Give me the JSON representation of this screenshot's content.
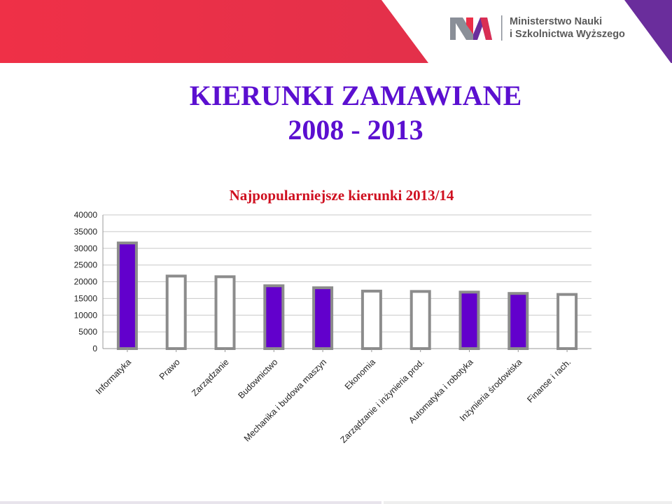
{
  "slide": {
    "title_line1": "KIERUNKI ZAMAWIANE",
    "title_line2": "2008 - 2013"
  },
  "logo": {
    "name_line1": "Ministerstwo Nauki",
    "name_line2": "i Szkolnictwa Wyższego"
  },
  "colors": {
    "banner_red": "#ec2f48",
    "banner_purple": "#6a2d9c",
    "bar_fill": "#6200cc",
    "bar_border": "#8c8c8c",
    "title_purple": "#5b0fd0",
    "chart_title_red": "#cf1020"
  },
  "chart_data": {
    "type": "bar",
    "title": "Najpopularniejsze kierunki 2013/14",
    "categories": [
      "Informatyka",
      "Prawo",
      "Zarządzanie",
      "Budownictwo",
      "Mechanika i budowa maszyn",
      "Ekonomia",
      "Zarządzanie i inżynieria prod.",
      "Automatyka i robotyka",
      "Inżynieria środowiska",
      "Finanse i rach."
    ],
    "values": [
      31600,
      21700,
      21500,
      18800,
      18200,
      17200,
      17100,
      16900,
      16500,
      16200
    ],
    "filled": [
      true,
      false,
      false,
      true,
      true,
      false,
      false,
      true,
      true,
      false
    ],
    "yticks": [
      0,
      5000,
      10000,
      15000,
      20000,
      25000,
      30000,
      35000,
      40000
    ],
    "ylim": [
      0,
      40000
    ],
    "grid": true,
    "legend": "none",
    "xlabel": "",
    "ylabel": ""
  }
}
